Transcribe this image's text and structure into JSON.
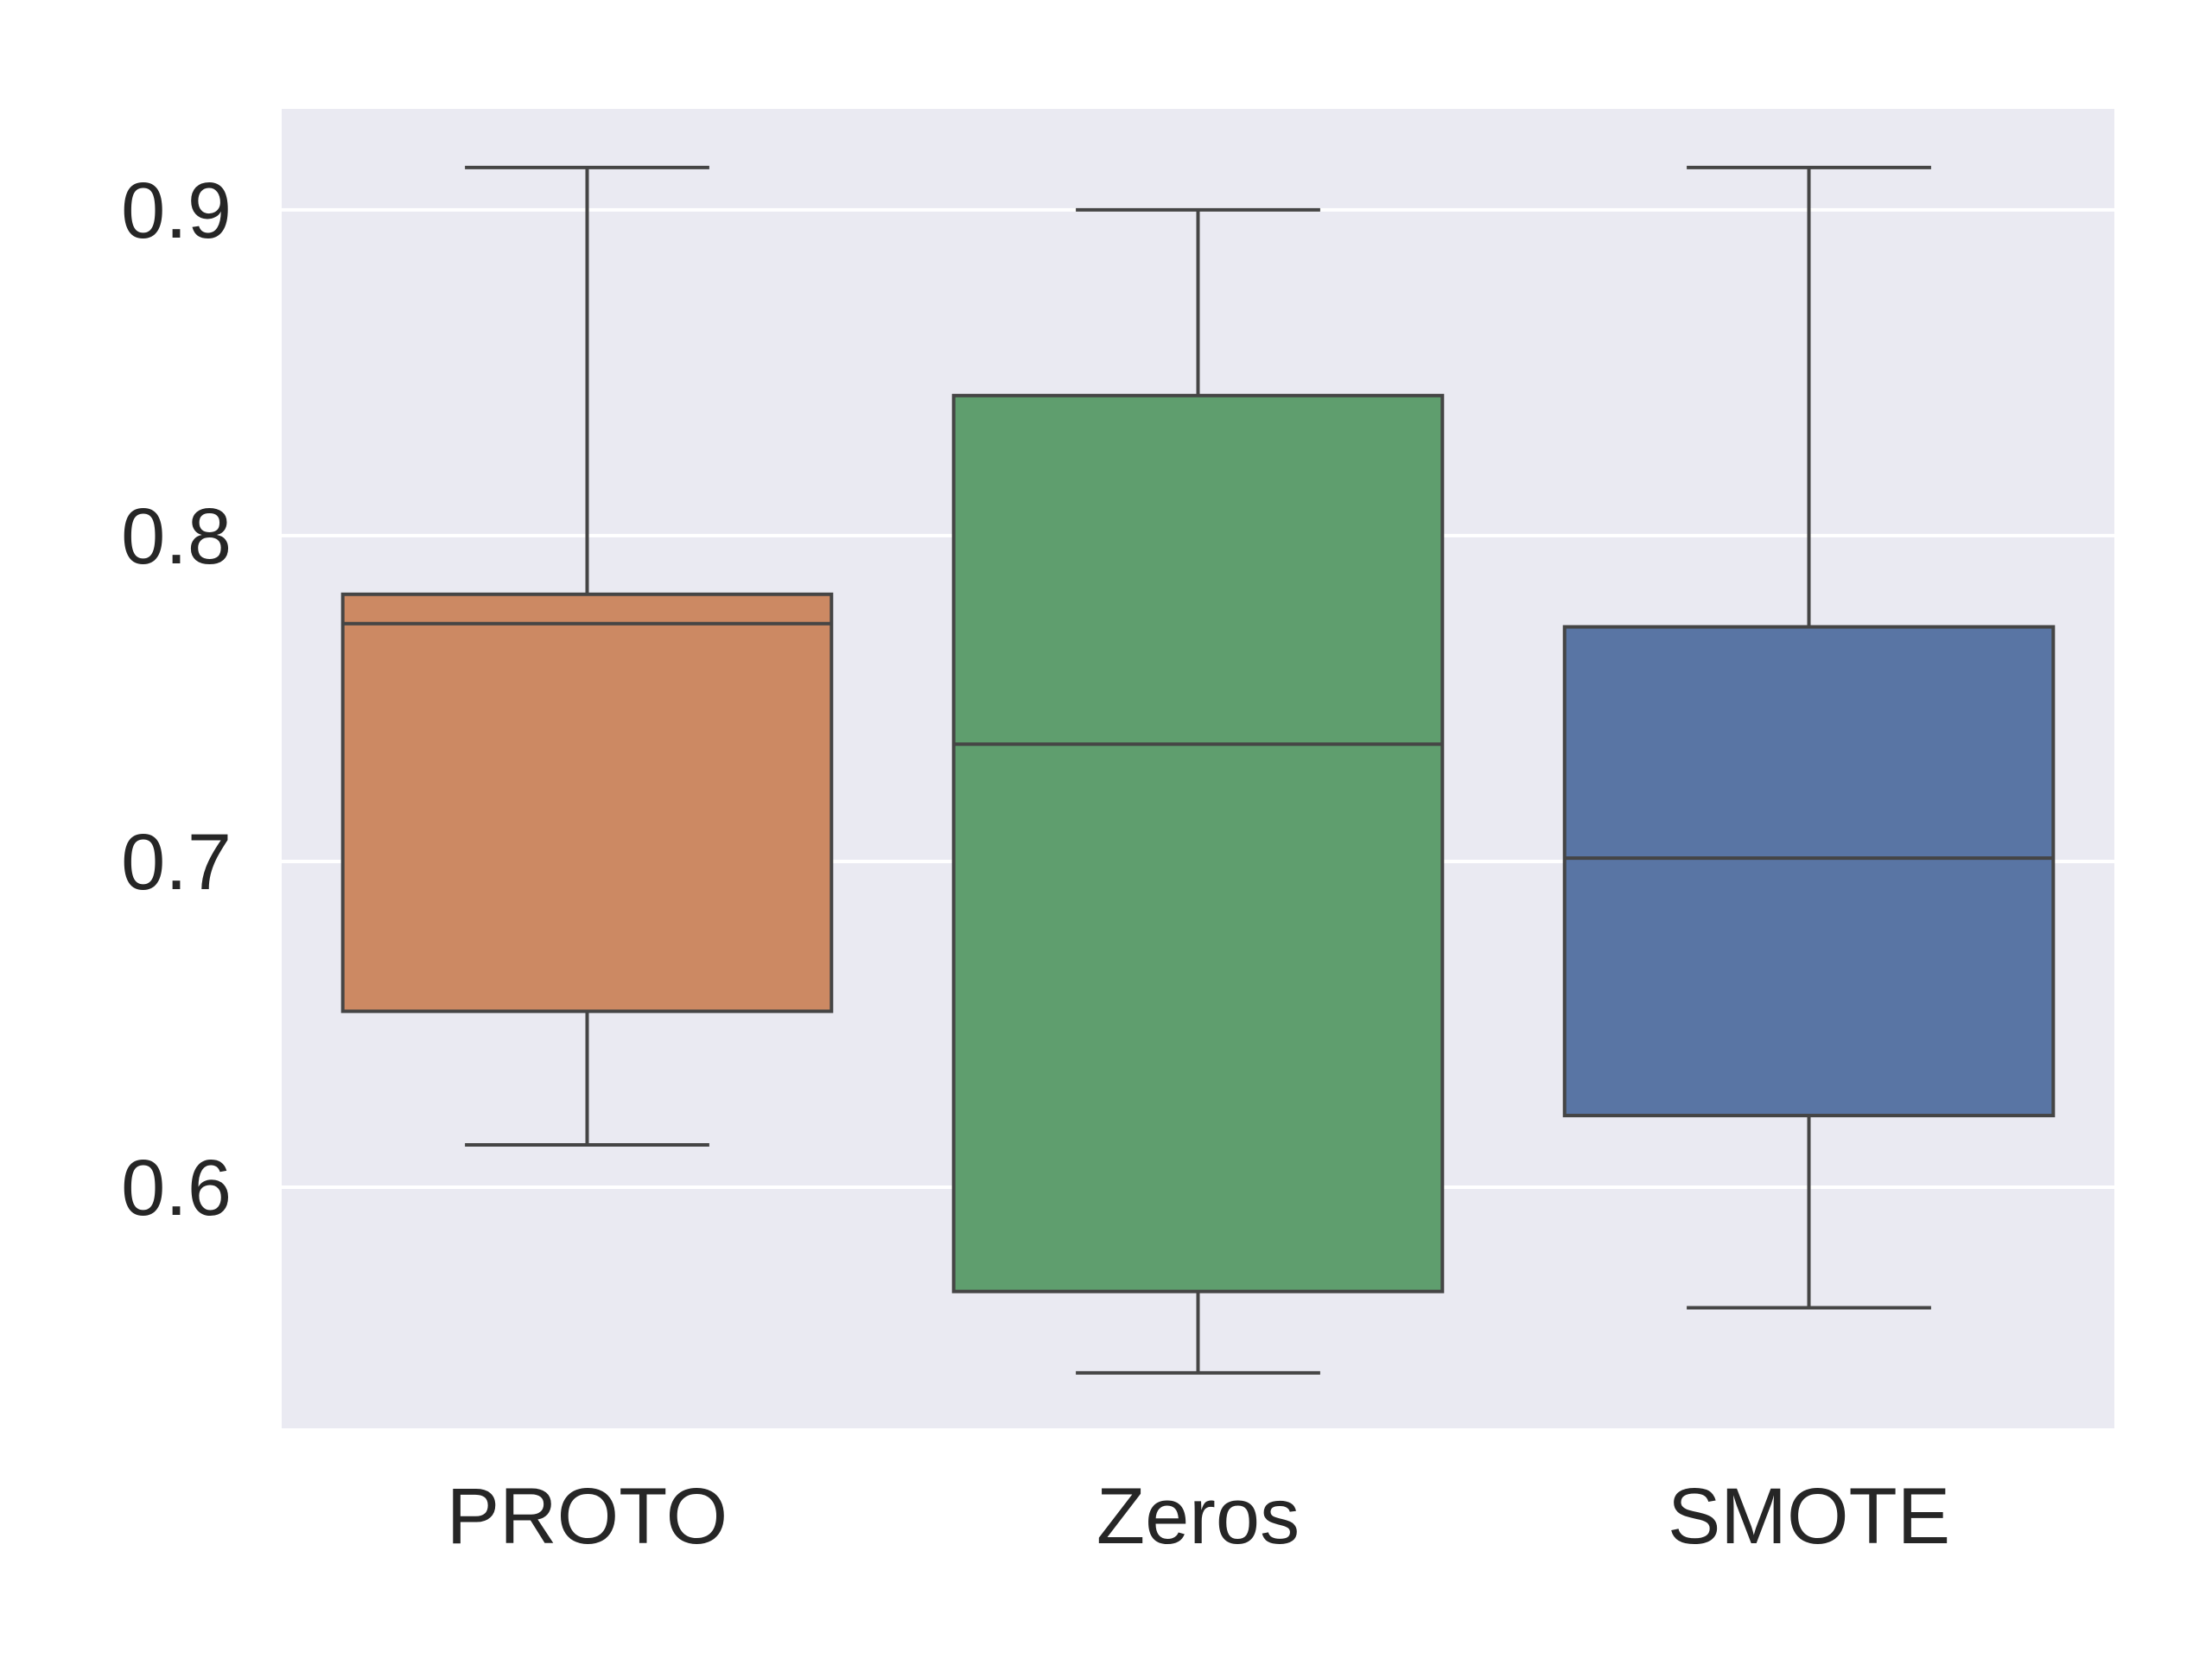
{
  "chart_data": {
    "type": "box",
    "title": "",
    "xlabel": "",
    "ylabel": "",
    "categories": [
      "PROTO",
      "Zeros",
      "SMOTE"
    ],
    "boxes": [
      {
        "category": "PROTO",
        "whisker_low": 0.613,
        "q1": 0.654,
        "median": 0.773,
        "q3": 0.782,
        "whisker_high": 0.913,
        "color": "#cc8963"
      },
      {
        "category": "Zeros",
        "whisker_low": 0.543,
        "q1": 0.568,
        "median": 0.736,
        "q3": 0.843,
        "whisker_high": 0.9,
        "color": "#5f9e6e"
      },
      {
        "category": "SMOTE",
        "whisker_low": 0.563,
        "q1": 0.622,
        "median": 0.701,
        "q3": 0.772,
        "whisker_high": 0.913,
        "color": "#5975a4"
      }
    ],
    "yticks": [
      0.6,
      0.7,
      0.8,
      0.9
    ],
    "ytick_labels": [
      "0.6",
      "0.7",
      "0.8",
      "0.9"
    ],
    "ylim": [
      0.526,
      0.931
    ],
    "grid": true,
    "colors": {
      "plot_background": "#eaeaf2",
      "grid": "#ffffff",
      "box_edge": "#454545",
      "text": "#262626"
    }
  }
}
